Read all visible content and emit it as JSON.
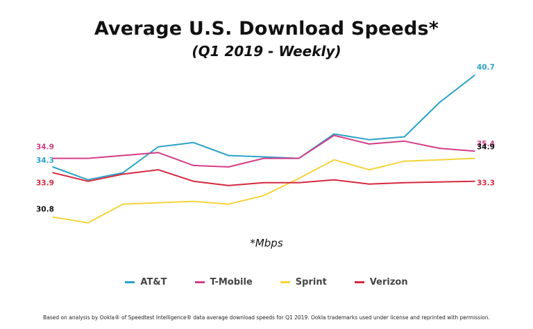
{
  "title": "Average U.S. Download Speeds*",
  "subtitle": "(Q1 2019 - Weekly)",
  "unit_note": "*Mbps",
  "footnote": "Based on analysis by Ookla® of Speedtest Intelligence® data average download speeds for Q1 2019. Ookla trademarks used under license and reprinted with permission.",
  "colors": {
    "AT&T": "#2aa2c8",
    "T-Mobile": "#d43c87",
    "Sprint": "#f5d33a",
    "Verizon": "#d4283f"
  },
  "chart_data": {
    "type": "line",
    "title": "Average U.S. Download Speeds*",
    "subtitle": "(Q1 2019 - Weekly)",
    "unit": "Mbps",
    "x": [
      1,
      2,
      3,
      4,
      5,
      6,
      7,
      8,
      9,
      10,
      11,
      12,
      13
    ],
    "xlabel": "",
    "ylabel": "",
    "ylim": [
      30,
      41.5
    ],
    "grid": false,
    "legend_position": "bottom",
    "series": [
      {
        "name": "AT&T",
        "values": [
          34.3,
          33.4,
          33.9,
          35.7,
          36.0,
          35.1,
          35.0,
          34.9,
          36.6,
          36.2,
          36.4,
          38.8,
          40.7
        ],
        "start_label": "34.3",
        "end_label": "40.7"
      },
      {
        "name": "T-Mobile",
        "values": [
          34.9,
          34.9,
          35.1,
          35.3,
          34.4,
          34.3,
          34.9,
          34.9,
          36.5,
          35.9,
          36.1,
          35.6,
          35.4
        ],
        "start_label": "34.9",
        "end_label": "35.4"
      },
      {
        "name": "Sprint",
        "values": [
          30.8,
          30.4,
          31.7,
          31.8,
          31.9,
          31.7,
          32.3,
          33.5,
          34.8,
          34.1,
          34.7,
          34.8,
          34.9
        ],
        "start_label": "30.8",
        "end_label": "34.9"
      },
      {
        "name": "Verizon",
        "values": [
          33.9,
          33.3,
          33.8,
          34.1,
          33.3,
          33.0,
          33.2,
          33.2,
          33.4,
          33.1,
          33.2,
          33.25,
          33.3
        ],
        "start_label": "33.9",
        "end_label": "33.3"
      }
    ]
  }
}
